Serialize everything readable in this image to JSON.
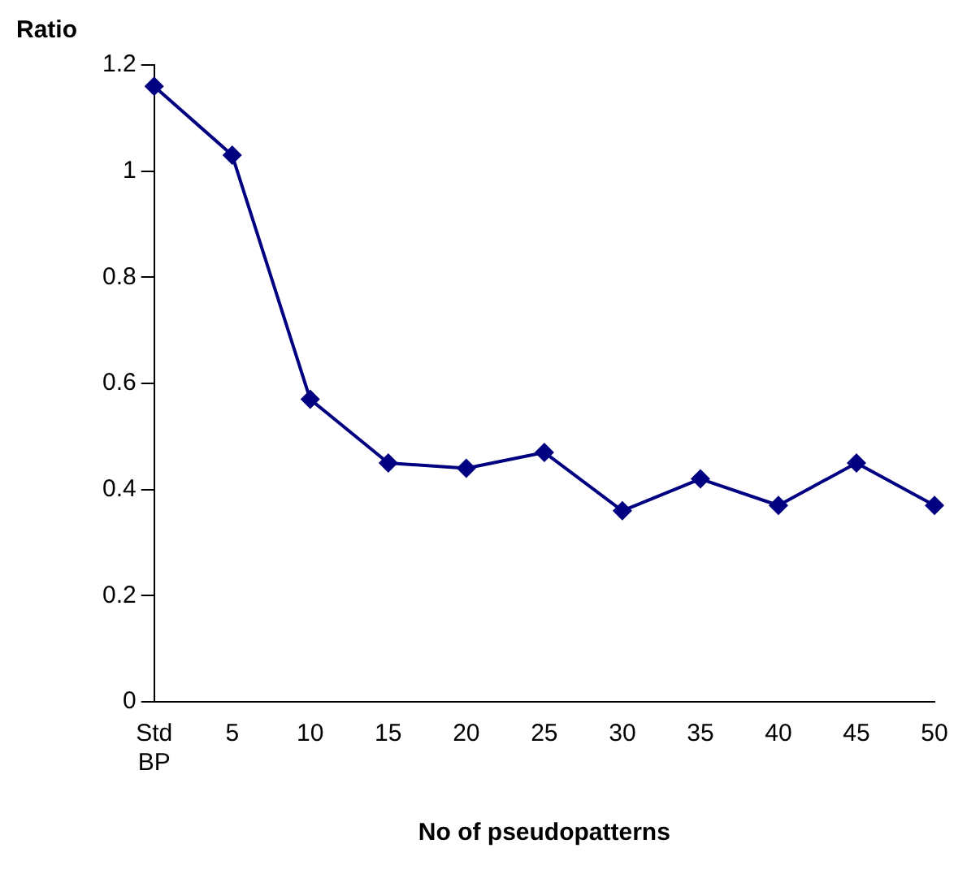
{
  "chart_data": {
    "type": "line",
    "xlabel": "No of pseudopatterns",
    "ylabel": "Ratio",
    "categories": [
      "Std BP",
      "5",
      "10",
      "15",
      "20",
      "25",
      "30",
      "35",
      "40",
      "45",
      "50"
    ],
    "series": [
      {
        "color": "#000080",
        "values": [
          1.16,
          1.03,
          0.57,
          0.45,
          0.44,
          0.47,
          0.36,
          0.42,
          0.37,
          0.45,
          0.37
        ]
      }
    ],
    "ylim": [
      0,
      1.2
    ],
    "yticks": [
      0,
      0.2,
      0.4,
      0.6,
      0.8,
      1,
      1.2
    ],
    "grid": false,
    "legend": false,
    "marker": "diamond",
    "line_style": "solid"
  }
}
